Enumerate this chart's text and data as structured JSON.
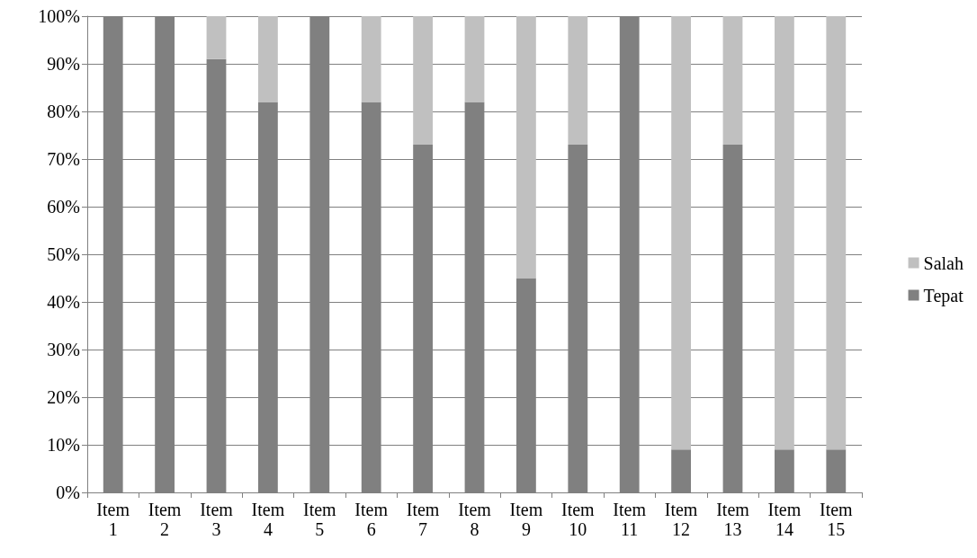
{
  "chart_data": {
    "type": "bar",
    "stacked": true,
    "categories": [
      "Item 1",
      "Item 2",
      "Item 3",
      "Item 4",
      "Item 5",
      "Item 6",
      "Item 7",
      "Item 8",
      "Item 9",
      "Item 10",
      "Item 11",
      "Item 12",
      "Item 13",
      "Item 14",
      "Item 15"
    ],
    "series": [
      {
        "name": "Tepat",
        "color": "#808080",
        "values": [
          100,
          100,
          91,
          82,
          100,
          82,
          73,
          82,
          45,
          73,
          100,
          9,
          73,
          9,
          9
        ]
      },
      {
        "name": "Salah",
        "color": "#c0c0c0",
        "values": [
          0,
          0,
          9,
          18,
          0,
          18,
          27,
          18,
          55,
          27,
          0,
          91,
          27,
          91,
          91
        ]
      }
    ],
    "ylim": [
      0,
      100
    ],
    "yticks": [
      {
        "value": 0,
        "label": "0%"
      },
      {
        "value": 10,
        "label": "10%"
      },
      {
        "value": 20,
        "label": "20%"
      },
      {
        "value": 30,
        "label": "30%"
      },
      {
        "value": 40,
        "label": "40%"
      },
      {
        "value": 50,
        "label": "50%"
      },
      {
        "value": 60,
        "label": "60%"
      },
      {
        "value": 70,
        "label": "70%"
      },
      {
        "value": 80,
        "label": "80%"
      },
      {
        "value": 90,
        "label": "90%"
      },
      {
        "value": 100,
        "label": "100%"
      }
    ],
    "grid": "y",
    "legend": "right"
  }
}
